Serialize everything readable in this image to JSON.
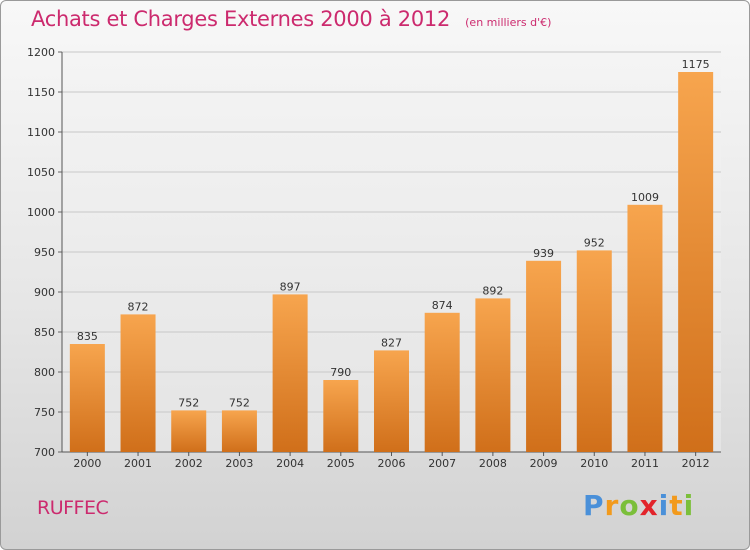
{
  "chart_data": {
    "type": "bar",
    "title": "Achats et Charges Externes 2000 à 2012",
    "subtitle": "(en milliers d'€)",
    "categories": [
      "2000",
      "2001",
      "2002",
      "2003",
      "2004",
      "2005",
      "2006",
      "2007",
      "2008",
      "2009",
      "2010",
      "2011",
      "2012"
    ],
    "values": [
      835,
      872,
      752,
      752,
      897,
      790,
      827,
      874,
      892,
      939,
      952,
      1009,
      1175
    ],
    "ylim": [
      700,
      1200
    ],
    "yticks": [
      700,
      750,
      800,
      850,
      900,
      950,
      1000,
      1050,
      1100,
      1150,
      1200
    ],
    "grid": true,
    "colors": {
      "bar_top": "#f7a54e",
      "bar_bottom": "#d06f1a",
      "title": "#cc2a6e"
    }
  },
  "location": "RUFFEC",
  "logo": {
    "text": "Proxiti",
    "letters": [
      {
        "ch": "P",
        "color": "#4a90d9"
      },
      {
        "ch": "r",
        "color": "#f29a1c"
      },
      {
        "ch": "o",
        "color": "#7bbf3a"
      },
      {
        "ch": "x",
        "color": "#e2242b"
      },
      {
        "ch": "i",
        "color": "#4a90d9"
      },
      {
        "ch": "t",
        "color": "#f29a1c"
      },
      {
        "ch": "i",
        "color": "#7bbf3a"
      }
    ]
  }
}
